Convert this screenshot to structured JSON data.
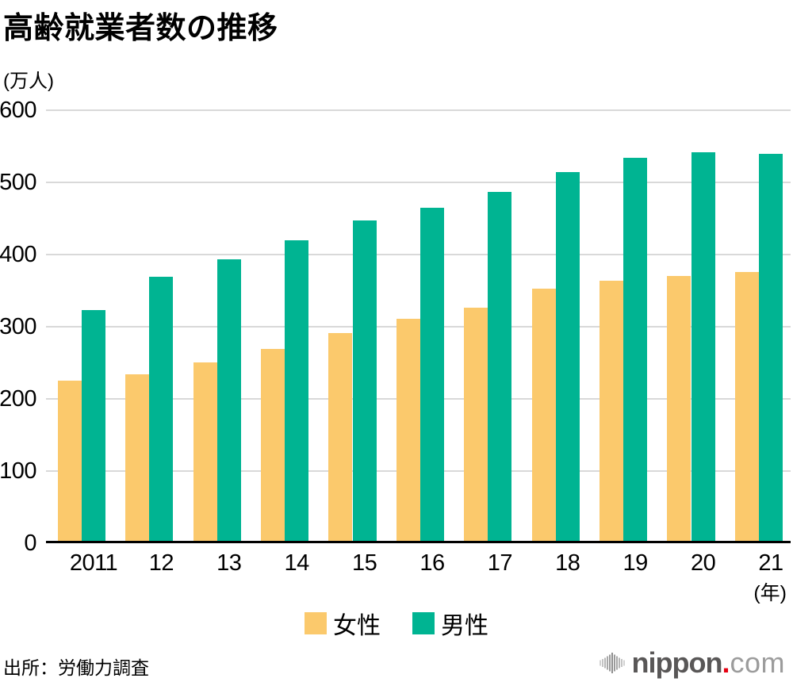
{
  "title": "高齢就業者数の推移",
  "source": "出所：労働力調査",
  "colors": {
    "female": "#FBC96C",
    "male": "#00B492",
    "grid": "#D9D9D9",
    "axis": "#000000",
    "logo_dark_gray": "#595757",
    "logo_light_gray": "#9C9C9C",
    "logo_red": "#E60012"
  },
  "chart_data": {
    "type": "bar",
    "title": "高齢就業者数の推移",
    "categories": [
      "2011",
      "12",
      "13",
      "14",
      "15",
      "16",
      "17",
      "18",
      "19",
      "20",
      "21"
    ],
    "series": [
      {
        "name": "女性",
        "color": "#FBC96C",
        "values": [
          222,
          231,
          247,
          266,
          288,
          308,
          323,
          350,
          361,
          367,
          373
        ]
      },
      {
        "name": "男性",
        "color": "#00B492",
        "values": [
          320,
          366,
          390,
          416,
          444,
          462,
          483,
          511,
          531,
          538,
          536
        ]
      }
    ],
    "ylabel": "(万人)",
    "xlabel": "(年)",
    "ylim": [
      0,
      600
    ],
    "yticks": [
      0,
      100,
      200,
      300,
      400,
      500,
      600
    ],
    "grid": true,
    "legend_position": "bottom"
  },
  "legend": {
    "items": [
      {
        "label": "女性",
        "color": "#FBC96C"
      },
      {
        "label": "男性",
        "color": "#00B492"
      }
    ]
  },
  "logo": {
    "icon": "soundwave-icon",
    "text_main": "nippon",
    "dot": ".",
    "text_suffix": "com"
  }
}
